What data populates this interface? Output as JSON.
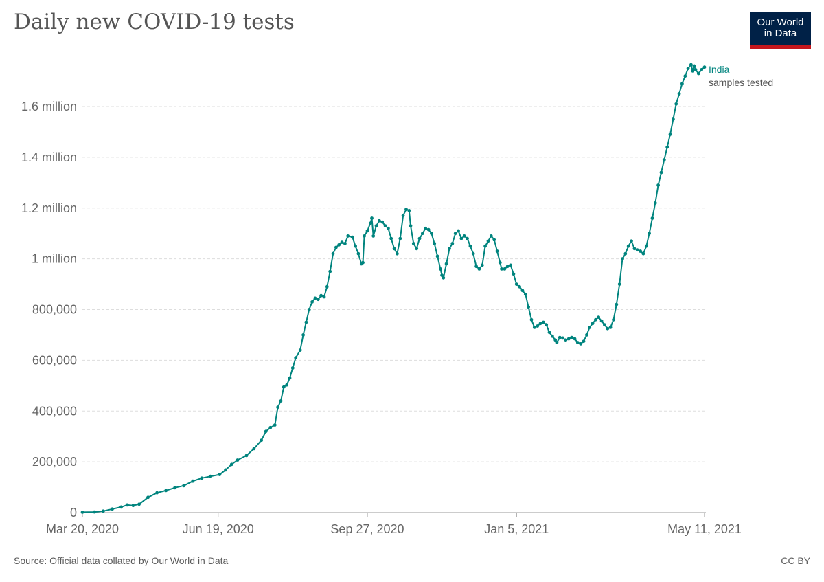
{
  "title": "Daily new COVID-19 tests",
  "logo": {
    "line1": "Our World",
    "line2": "in Data"
  },
  "source": "Source: Official data collated by Our World in Data",
  "license": "CC BY",
  "colors": {
    "series": "#00847e",
    "grid": "#dddddd",
    "logo_bg": "#002147",
    "logo_bar": "#c4161c"
  },
  "chart_data": {
    "type": "line",
    "title": "Daily new COVID-19 tests",
    "xlabel": "",
    "ylabel": "",
    "ylim": [
      0,
      1800000
    ],
    "y_ticks": [
      {
        "value": 0,
        "label": "0"
      },
      {
        "value": 200000,
        "label": "200,000"
      },
      {
        "value": 400000,
        "label": "400,000"
      },
      {
        "value": 600000,
        "label": "600,000"
      },
      {
        "value": 800000,
        "label": "800,000"
      },
      {
        "value": 1000000,
        "label": "1 million"
      },
      {
        "value": 1200000,
        "label": "1.2 million"
      },
      {
        "value": 1400000,
        "label": "1.4 million"
      },
      {
        "value": 1600000,
        "label": "1.6 million"
      }
    ],
    "x_range_days": [
      0,
      417
    ],
    "x_ticks": [
      {
        "day": 0,
        "label": "Mar 20, 2020"
      },
      {
        "day": 91,
        "label": "Jun 19, 2020"
      },
      {
        "day": 191,
        "label": "Sep 27, 2020"
      },
      {
        "day": 291,
        "label": "Jan 5, 2021"
      },
      {
        "day": 417,
        "label": "May 11, 2021"
      }
    ],
    "series": [
      {
        "name": "India",
        "sublabel": "samples tested",
        "points": [
          [
            0,
            1500
          ],
          [
            8,
            2500
          ],
          [
            14,
            6000
          ],
          [
            20,
            14000
          ],
          [
            26,
            22000
          ],
          [
            30,
            30000
          ],
          [
            34,
            28000
          ],
          [
            38,
            33000
          ],
          [
            44,
            60000
          ],
          [
            50,
            78000
          ],
          [
            56,
            87000
          ],
          [
            62,
            98000
          ],
          [
            68,
            106000
          ],
          [
            74,
            124000
          ],
          [
            80,
            136000
          ],
          [
            86,
            143000
          ],
          [
            92,
            150000
          ],
          [
            96,
            168000
          ],
          [
            100,
            190000
          ],
          [
            104,
            207000
          ],
          [
            110,
            225000
          ],
          [
            115,
            252000
          ],
          [
            120,
            285000
          ],
          [
            123,
            320000
          ],
          [
            126,
            335000
          ],
          [
            129,
            345000
          ],
          [
            131,
            415000
          ],
          [
            133,
            440000
          ],
          [
            135,
            495000
          ],
          [
            137,
            503000
          ],
          [
            139,
            530000
          ],
          [
            141,
            570000
          ],
          [
            143,
            610000
          ],
          [
            146,
            640000
          ],
          [
            148,
            700000
          ],
          [
            150,
            750000
          ],
          [
            152,
            800000
          ],
          [
            154,
            830000
          ],
          [
            156,
            845000
          ],
          [
            158,
            840000
          ],
          [
            160,
            855000
          ],
          [
            162,
            850000
          ],
          [
            164,
            890000
          ],
          [
            166,
            950000
          ],
          [
            168,
            1020000
          ],
          [
            170,
            1045000
          ],
          [
            172,
            1055000
          ],
          [
            174,
            1065000
          ],
          [
            176,
            1060000
          ],
          [
            178,
            1090000
          ],
          [
            181,
            1085000
          ],
          [
            183,
            1050000
          ],
          [
            185,
            1020000
          ],
          [
            187,
            980000
          ],
          [
            188,
            985000
          ],
          [
            189,
            1090000
          ],
          [
            191,
            1110000
          ],
          [
            193,
            1140000
          ],
          [
            194,
            1160000
          ],
          [
            195,
            1090000
          ],
          [
            197,
            1130000
          ],
          [
            199,
            1150000
          ],
          [
            201,
            1145000
          ],
          [
            203,
            1130000
          ],
          [
            205,
            1120000
          ],
          [
            207,
            1080000
          ],
          [
            209,
            1040000
          ],
          [
            211,
            1020000
          ],
          [
            213,
            1080000
          ],
          [
            215,
            1170000
          ],
          [
            217,
            1195000
          ],
          [
            219,
            1190000
          ],
          [
            220,
            1130000
          ],
          [
            222,
            1060000
          ],
          [
            224,
            1040000
          ],
          [
            226,
            1080000
          ],
          [
            228,
            1100000
          ],
          [
            230,
            1120000
          ],
          [
            232,
            1115000
          ],
          [
            234,
            1100000
          ],
          [
            236,
            1060000
          ],
          [
            238,
            1010000
          ],
          [
            240,
            960000
          ],
          [
            241,
            935000
          ],
          [
            242,
            925000
          ],
          [
            244,
            980000
          ],
          [
            246,
            1040000
          ],
          [
            248,
            1060000
          ],
          [
            250,
            1100000
          ],
          [
            252,
            1110000
          ],
          [
            254,
            1080000
          ],
          [
            256,
            1090000
          ],
          [
            258,
            1080000
          ],
          [
            260,
            1050000
          ],
          [
            262,
            1020000
          ],
          [
            264,
            970000
          ],
          [
            266,
            960000
          ],
          [
            268,
            975000
          ],
          [
            270,
            1050000
          ],
          [
            272,
            1070000
          ],
          [
            274,
            1090000
          ],
          [
            276,
            1075000
          ],
          [
            278,
            1030000
          ],
          [
            280,
            985000
          ],
          [
            281,
            960000
          ],
          [
            283,
            960000
          ],
          [
            285,
            970000
          ],
          [
            287,
            975000
          ],
          [
            289,
            940000
          ],
          [
            291,
            900000
          ],
          [
            293,
            890000
          ],
          [
            295,
            875000
          ],
          [
            297,
            860000
          ],
          [
            299,
            810000
          ],
          [
            301,
            760000
          ],
          [
            303,
            730000
          ],
          [
            305,
            735000
          ],
          [
            307,
            745000
          ],
          [
            309,
            750000
          ],
          [
            311,
            740000
          ],
          [
            313,
            710000
          ],
          [
            315,
            695000
          ],
          [
            317,
            680000
          ],
          [
            318,
            670000
          ],
          [
            320,
            690000
          ],
          [
            322,
            688000
          ],
          [
            324,
            680000
          ],
          [
            326,
            685000
          ],
          [
            328,
            690000
          ],
          [
            330,
            685000
          ],
          [
            332,
            670000
          ],
          [
            334,
            665000
          ],
          [
            336,
            675000
          ],
          [
            338,
            700000
          ],
          [
            340,
            730000
          ],
          [
            342,
            745000
          ],
          [
            344,
            760000
          ],
          [
            346,
            770000
          ],
          [
            348,
            755000
          ],
          [
            350,
            740000
          ],
          [
            352,
            725000
          ],
          [
            354,
            730000
          ],
          [
            356,
            760000
          ],
          [
            358,
            820000
          ],
          [
            360,
            900000
          ],
          [
            362,
            1000000
          ],
          [
            364,
            1020000
          ],
          [
            366,
            1050000
          ],
          [
            368,
            1070000
          ],
          [
            370,
            1040000
          ],
          [
            372,
            1035000
          ],
          [
            374,
            1030000
          ],
          [
            376,
            1020000
          ],
          [
            378,
            1050000
          ],
          [
            380,
            1100000
          ],
          [
            382,
            1160000
          ],
          [
            384,
            1220000
          ],
          [
            386,
            1290000
          ],
          [
            388,
            1340000
          ],
          [
            390,
            1390000
          ],
          [
            392,
            1440000
          ],
          [
            394,
            1490000
          ],
          [
            396,
            1550000
          ],
          [
            398,
            1610000
          ],
          [
            400,
            1650000
          ],
          [
            402,
            1690000
          ],
          [
            404,
            1720000
          ],
          [
            406,
            1750000
          ],
          [
            408,
            1765000
          ],
          [
            409,
            1740000
          ],
          [
            410,
            1760000
          ],
          [
            411,
            1745000
          ],
          [
            413,
            1730000
          ],
          [
            415,
            1745000
          ],
          [
            417,
            1755000
          ]
        ]
      }
    ]
  }
}
